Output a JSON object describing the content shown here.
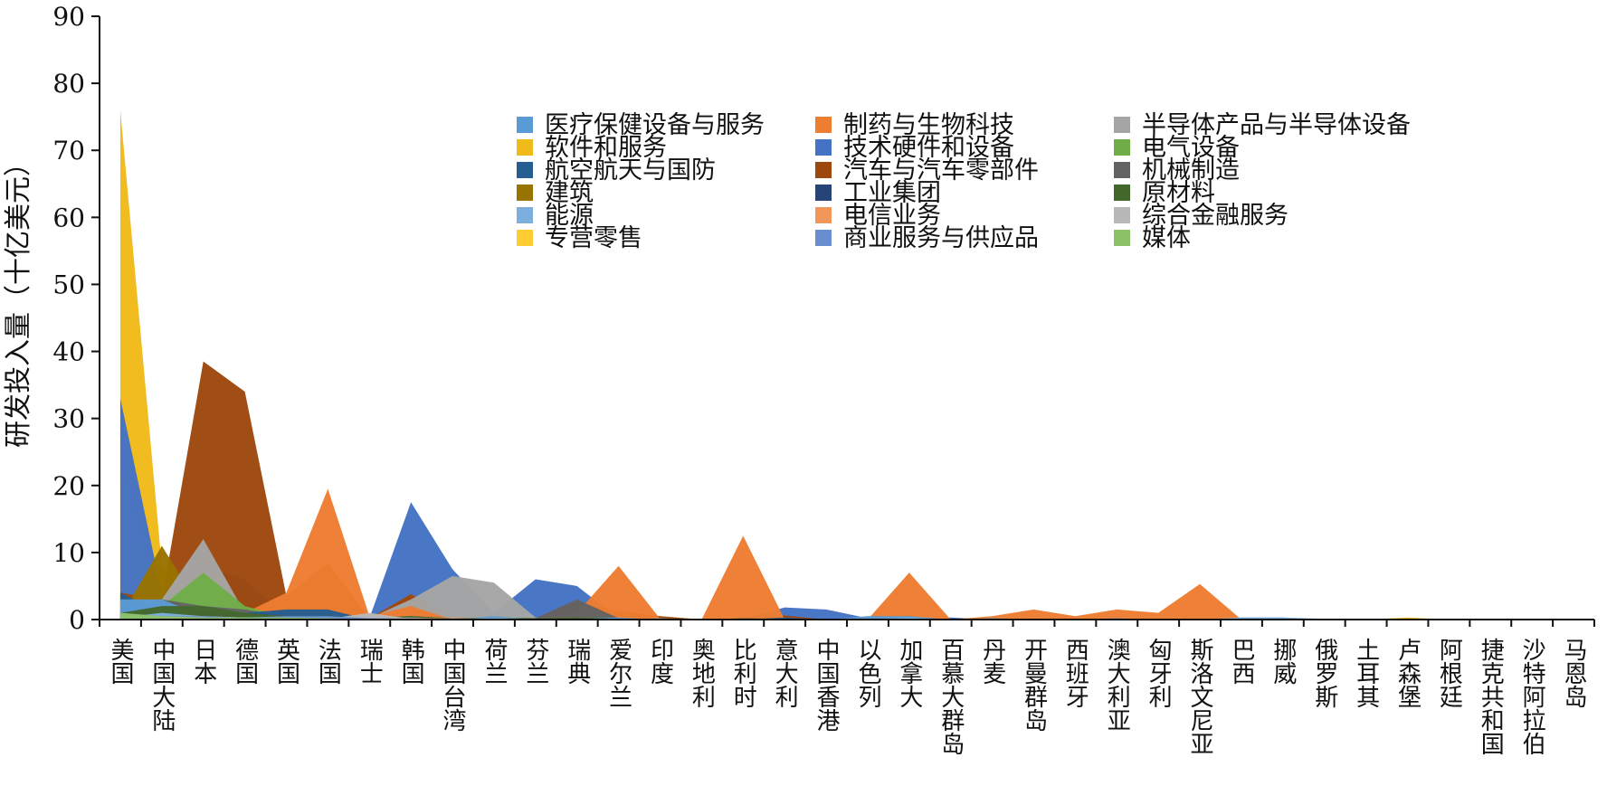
{
  "chart_data": {
    "type": "area",
    "title": "",
    "xlabel": "",
    "ylabel": "研发投入量（十亿美元）",
    "ylim": [
      0,
      90
    ],
    "yticks": [
      0,
      10,
      20,
      30,
      40,
      50,
      60,
      70,
      80,
      90
    ],
    "grid": false,
    "legend_position": "top-right",
    "categories": [
      "美国",
      "中国大陆",
      "日本",
      "德国",
      "英国",
      "法国",
      "瑞士",
      "韩国",
      "中国台湾",
      "荷兰",
      "芬兰",
      "瑞典",
      "爱尔兰",
      "印度",
      "奥地利",
      "比利时",
      "意大利",
      "中国香港",
      "以色列",
      "加拿大",
      "百慕大群岛",
      "丹麦",
      "开曼群岛",
      "西班牙",
      "澳大利亚",
      "匈牙利",
      "斯洛文尼亚",
      "巴西",
      "挪威",
      "俄罗斯",
      "土耳其",
      "卢森堡",
      "阿根廷",
      "捷克共和国",
      "沙特阿拉伯",
      "马恩岛"
    ],
    "series": [
      {
        "name": "医疗保健设备与服务",
        "color": "#5b9bd5",
        "values": [
          3,
          3,
          0.5,
          0.3,
          0.2,
          0.3,
          0.5,
          0.2,
          0,
          0.5,
          0,
          0.2,
          0.3,
          0,
          0,
          0.1,
          0.1,
          0,
          0.5,
          0.5,
          0,
          0.2,
          0,
          0,
          0.2,
          0,
          0,
          0,
          0,
          0,
          0,
          0,
          0,
          0,
          0,
          0
        ]
      },
      {
        "name": "制药与生物科技",
        "color": "#ed7d31",
        "values": [
          0,
          1,
          2,
          1,
          4,
          19.5,
          0.5,
          2,
          0,
          0,
          0,
          1,
          8,
          0.1,
          0,
          12.5,
          0,
          0,
          0,
          7,
          0,
          0.5,
          1.5,
          0.5,
          1.5,
          1,
          5.3,
          0,
          0,
          0,
          0,
          0,
          0,
          0,
          0,
          0
        ]
      },
      {
        "name": "半导体产品与半导体设备",
        "color": "#a5a5a5",
        "values": [
          2,
          3,
          12,
          1,
          0.3,
          0.3,
          0.2,
          3,
          6.5,
          5.5,
          0.3,
          0.5,
          0.2,
          0,
          0,
          0.1,
          0.2,
          0,
          0.3,
          0.2,
          0,
          0,
          0,
          0,
          0,
          0,
          0,
          0,
          0,
          0,
          0,
          0,
          0,
          0,
          0,
          0
        ]
      },
      {
        "name": "软件和服务",
        "color": "#f0ba18",
        "values": [
          76,
          8,
          2,
          1,
          0.5,
          0.5,
          0.2,
          0.3,
          0.2,
          0.5,
          0.3,
          0.3,
          0.2,
          0.5,
          0,
          0,
          0.2,
          0,
          0.5,
          0.7,
          0,
          0.2,
          0,
          0.2,
          0.3,
          0,
          0,
          0,
          0,
          0,
          0,
          0.3,
          0,
          0,
          0,
          0
        ]
      },
      {
        "name": "技术硬件和设备",
        "color": "#4472c4",
        "values": [
          33,
          4,
          8,
          6,
          0.3,
          0.3,
          0.2,
          17.5,
          7.5,
          1,
          6,
          5,
          0.2,
          0,
          0,
          0.1,
          1.8,
          1.5,
          0.2,
          0.3,
          0.3,
          0,
          0.2,
          0,
          0.2,
          0,
          0,
          0.3,
          0.3,
          0,
          0,
          0,
          0,
          0,
          0,
          0
        ]
      },
      {
        "name": "电气设备",
        "color": "#70ad47",
        "values": [
          0.5,
          2,
          7,
          2,
          0.3,
          0.5,
          0.2,
          0.5,
          0.2,
          0.3,
          0.2,
          0.2,
          0.1,
          0,
          0,
          0.1,
          0.1,
          0,
          0,
          0,
          0,
          0.2,
          0,
          0,
          0,
          0,
          0,
          0,
          0,
          0,
          0,
          0,
          0,
          0,
          0,
          0
        ]
      },
      {
        "name": "航空航天与国防",
        "color": "#255e91",
        "values": [
          4,
          1,
          0.5,
          1,
          1.5,
          1.5,
          0,
          0.3,
          0,
          0.2,
          0,
          0.2,
          0,
          0,
          0,
          0,
          0.3,
          0,
          0,
          0.2,
          0,
          0,
          0,
          0.1,
          0,
          0,
          0,
          0,
          0,
          0,
          0,
          0,
          0,
          0,
          0,
          0
        ]
      },
      {
        "name": "汽车与汽车零部件",
        "color": "#9e480e",
        "values": [
          4,
          3,
          38.5,
          34,
          3.5,
          8.5,
          0.2,
          3.8,
          0.5,
          0.2,
          0.2,
          2.5,
          1.3,
          0.5,
          0,
          0,
          0.6,
          0,
          0,
          0.3,
          0,
          0,
          0,
          0,
          0,
          0,
          0,
          0,
          0,
          0,
          0,
          0,
          0,
          0,
          0,
          0
        ]
      },
      {
        "name": "机械制造",
        "color": "#636363",
        "values": [
          1,
          3,
          2,
          1.5,
          0.5,
          0.5,
          0.5,
          0.3,
          0,
          0.3,
          0.2,
          3,
          0.2,
          0,
          0,
          0,
          0.2,
          0,
          0,
          0,
          0,
          0,
          0,
          0,
          0,
          0,
          0,
          0,
          0,
          0,
          0,
          0,
          0,
          0,
          0,
          0
        ]
      },
      {
        "name": "建筑",
        "color": "#997300",
        "values": [
          0.3,
          11,
          1,
          0.5,
          0.3,
          1,
          0.5,
          1,
          0.2,
          0.5,
          0.2,
          0.3,
          0.1,
          0,
          0,
          0,
          0,
          0,
          0,
          0,
          0,
          0,
          0,
          0,
          0,
          0,
          0,
          0,
          0,
          0,
          0,
          0,
          0,
          0,
          0,
          0
        ]
      },
      {
        "name": "工业集团",
        "color": "#264478",
        "values": [
          1,
          0.5,
          1,
          0.5,
          0.3,
          0.2,
          0.2,
          0.5,
          0.2,
          0.2,
          0,
          0.2,
          0,
          0,
          0,
          0,
          0,
          0,
          0,
          0,
          0,
          0,
          0,
          0,
          0,
          0,
          0,
          0,
          0,
          0,
          0,
          0,
          0,
          0,
          0,
          0
        ]
      },
      {
        "name": "原材料",
        "color": "#43682b",
        "values": [
          1,
          2,
          2,
          1,
          0.5,
          0.5,
          0.3,
          0.5,
          0.2,
          0.3,
          0.2,
          0.3,
          0.1,
          0.1,
          0,
          0.2,
          0.1,
          0,
          0,
          0.1,
          0,
          0,
          0,
          0,
          0,
          0,
          0,
          0,
          0,
          0,
          0,
          0,
          0,
          0,
          0,
          0
        ]
      },
      {
        "name": "能源",
        "color": "#7cafdd",
        "values": [
          0.3,
          1,
          0.5,
          0.3,
          0.3,
          0.3,
          0.1,
          0.3,
          0.1,
          0.3,
          0.1,
          0.1,
          0,
          0.2,
          0,
          0,
          0.1,
          0,
          0,
          0.3,
          0,
          0,
          0,
          0,
          0,
          0,
          0,
          0.3,
          0.3,
          0.1,
          0,
          0,
          0,
          0,
          0,
          0
        ]
      },
      {
        "name": "电信业务",
        "color": "#f1975a",
        "values": [
          0.3,
          0.5,
          0.5,
          0.3,
          0.2,
          0.3,
          0.1,
          0.2,
          0.2,
          0.1,
          0.1,
          0.1,
          0,
          0,
          0,
          0,
          0,
          0,
          0,
          0,
          0,
          0,
          0,
          0,
          0,
          0,
          0,
          0,
          0,
          0,
          0,
          0,
          0,
          0,
          0,
          0
        ]
      },
      {
        "name": "综合金融服务",
        "color": "#b7b7b7",
        "values": [
          0.3,
          0.2,
          0.2,
          0.1,
          0.3,
          0.1,
          1,
          0.1,
          0.1,
          0.1,
          0,
          0,
          0,
          0,
          0,
          0,
          0,
          0,
          0,
          0,
          0,
          0,
          0,
          0,
          0,
          0,
          0,
          0,
          0,
          0,
          0,
          0,
          0,
          0,
          0,
          0
        ]
      },
      {
        "name": "专营零售",
        "color": "#ffcd33",
        "values": [
          22,
          1,
          0.3,
          0.2,
          0.3,
          0.2,
          0.1,
          0.2,
          0.1,
          0.1,
          0,
          0.1,
          0,
          0.1,
          0,
          0,
          0,
          0,
          0,
          0,
          0,
          0,
          0,
          0,
          0,
          0,
          0,
          0,
          0,
          0,
          0,
          0,
          0,
          0,
          0,
          0
        ]
      },
      {
        "name": "商业服务与供应品",
        "color": "#698ed0",
        "values": [
          1,
          0.5,
          0.5,
          0.3,
          0.5,
          0.5,
          0.2,
          0.1,
          0,
          0.2,
          0,
          0.1,
          0.1,
          0,
          0,
          0,
          0,
          0,
          0,
          0.1,
          0,
          0,
          0,
          0,
          0,
          0,
          0,
          0,
          0,
          0,
          0,
          0,
          0,
          0,
          0,
          0
        ]
      },
      {
        "name": "媒体",
        "color": "#8cc168",
        "values": [
          1,
          0.5,
          0.3,
          0.3,
          0.3,
          0.2,
          0,
          0.1,
          0,
          0,
          0,
          0,
          0,
          0,
          0,
          0,
          0,
          0,
          0,
          0,
          0,
          0,
          0,
          0,
          0,
          0,
          0,
          0,
          0,
          0,
          0,
          0,
          0,
          0,
          0,
          0
        ]
      }
    ],
    "draw_order": [
      "软件和服务",
      "专营零售",
      "技术硬件和设备",
      "汽车与汽车零部件",
      "建筑",
      "半导体产品与半导体设备",
      "制药与生物科技",
      "电气设备",
      "机械制造",
      "航空航天与国防",
      "医疗保健设备与服务",
      "工业集团",
      "原材料",
      "能源",
      "电信业务",
      "综合金融服务",
      "商业服务与供应品",
      "媒体"
    ]
  }
}
